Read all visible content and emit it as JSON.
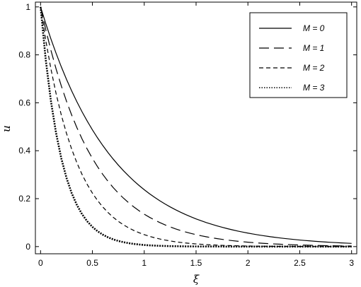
{
  "chart_data": {
    "type": "line",
    "title": "",
    "xlabel": "ξ",
    "ylabel": "u",
    "xlim": [
      -0.05,
      3.05
    ],
    "ylim": [
      -0.03,
      1.02
    ],
    "x_ticks": [
      0,
      0.5,
      1,
      1.5,
      2,
      2.5,
      3
    ],
    "x_tick_labels": [
      "0",
      "0.5",
      "1",
      "1.5",
      "2",
      "2.5",
      "3"
    ],
    "y_ticks": [
      0,
      0.2,
      0.4,
      0.6,
      0.8,
      1
    ],
    "y_tick_labels": [
      "0",
      "0.2",
      "0.4",
      "0.6",
      "0.8",
      "1"
    ],
    "grid": false,
    "legend_position": "top-right",
    "x": [
      0,
      0.05,
      0.1,
      0.15,
      0.2,
      0.25,
      0.3,
      0.35,
      0.4,
      0.45,
      0.5,
      0.55,
      0.6,
      0.65,
      0.7,
      0.75,
      0.8,
      0.85,
      0.9,
      0.95,
      1,
      1.05,
      1.1,
      1.15,
      1.2,
      1.25,
      1.3,
      1.35,
      1.4,
      1.45,
      1.5,
      1.55,
      1.6,
      1.65,
      1.7,
      1.75,
      1.8,
      1.85,
      1.9,
      1.95,
      2,
      2.05,
      2.1,
      2.15,
      2.2,
      2.25,
      2.3,
      2.35,
      2.4,
      2.45,
      2.5,
      2.55,
      2.6,
      2.65,
      2.7,
      2.75,
      2.8,
      2.85,
      2.9,
      2.95,
      3
    ],
    "series": [
      {
        "name": "M = 0",
        "dash": "solid",
        "values": [
          1,
          0.9306,
          0.866,
          0.8059,
          0.75,
          0.6979,
          0.6495,
          0.6044,
          0.5625,
          0.5235,
          0.4871,
          0.4533,
          0.4219,
          0.3926,
          0.3654,
          0.34,
          0.3164,
          0.2945,
          0.274,
          0.255,
          0.2373,
          0.2208,
          0.2055,
          0.1913,
          0.178,
          0.1656,
          0.1541,
          0.1434,
          0.1335,
          0.1242,
          0.1156,
          0.1076,
          0.1001,
          0.0932,
          0.0867,
          0.0807,
          0.0751,
          0.0699,
          0.065,
          0.0605,
          0.0563,
          0.0524,
          0.0488,
          0.0454,
          0.0422,
          0.0393,
          0.0366,
          0.034,
          0.0317,
          0.0295,
          0.0274,
          0.0255,
          0.0238,
          0.0221,
          0.0206,
          0.0191,
          0.0178,
          0.0166,
          0.0154,
          0.0144,
          0.0134
        ]
      },
      {
        "name": "M = 1",
        "dash": "long-dash",
        "values": [
          1,
          0.9048,
          0.8187,
          0.7408,
          0.6703,
          0.6065,
          0.5488,
          0.4966,
          0.4493,
          0.4066,
          0.3679,
          0.3329,
          0.3012,
          0.2725,
          0.2466,
          0.2231,
          0.2019,
          0.1827,
          0.1653,
          0.1496,
          0.1353,
          0.1225,
          0.1108,
          0.1003,
          0.0907,
          0.0821,
          0.0743,
          0.0672,
          0.0608,
          0.055,
          0.0498,
          0.045,
          0.0408,
          0.0369,
          0.0334,
          0.0302,
          0.0273,
          0.0247,
          0.0224,
          0.0202,
          0.0183,
          0.0166,
          0.015,
          0.0136,
          0.0123,
          0.0111,
          0.0101,
          0.0091,
          0.0082,
          0.0074,
          0.0067,
          0.0061,
          0.0055,
          0.005,
          0.0045,
          0.0041,
          0.0037,
          0.0033,
          0.003,
          0.0027,
          0.0025
        ]
      },
      {
        "name": "M = 2",
        "dash": "short-dash",
        "values": [
          1,
          0.8607,
          0.7408,
          0.6376,
          0.5488,
          0.4724,
          0.4066,
          0.3499,
          0.3012,
          0.2592,
          0.2231,
          0.192,
          0.1653,
          0.1423,
          0.1225,
          0.1054,
          0.0907,
          0.0781,
          0.0672,
          0.0578,
          0.0498,
          0.0429,
          0.0369,
          0.0317,
          0.0273,
          0.0235,
          0.0202,
          0.0174,
          0.015,
          0.0129,
          0.0111,
          0.0096,
          0.0082,
          0.0071,
          0.0061,
          0.0052,
          0.0045,
          0.0039,
          0.0033,
          0.0029,
          0.0025,
          0.0021,
          0.0018,
          0.0016,
          0.0014,
          0.0012,
          0.001,
          0.0009,
          0.0008,
          0.0007,
          0.0006,
          0.0005,
          0.0004,
          0.0004,
          0.0003,
          0.0003,
          0.0002,
          0.0002,
          0.0002,
          0.0001,
          0.0001
        ]
      },
      {
        "name": "M = 3",
        "dash": "dotted",
        "values": [
          1,
          0.7788,
          0.6065,
          0.4724,
          0.3679,
          0.2865,
          0.2231,
          0.1738,
          0.1353,
          0.1054,
          0.0821,
          0.0639,
          0.0498,
          0.0388,
          0.0302,
          0.0235,
          0.0183,
          0.0143,
          0.0111,
          0.0087,
          0.0067,
          0.0052,
          0.0041,
          0.0032,
          0.0025,
          0.0019,
          0.0015,
          0.0012,
          0.0009,
          0.0007,
          0.0006,
          0.0004,
          0.0003,
          0.0003,
          0.0002,
          0.0002,
          0.0001,
          0.0001,
          0.0001,
          0.0001,
          0,
          0,
          0,
          0,
          0,
          0,
          0,
          0,
          0,
          0,
          0,
          0,
          0,
          0,
          0,
          0,
          0,
          0,
          0,
          0,
          0
        ]
      }
    ]
  }
}
